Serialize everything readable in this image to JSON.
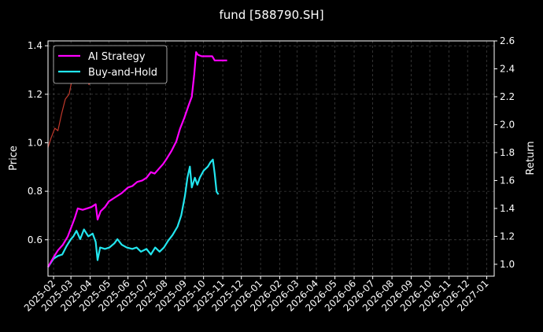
{
  "chart_data": {
    "type": "line",
    "title": "fund [588790.SH]",
    "xlabel": "",
    "ylabel_left": "Price",
    "ylabel_right": "Return",
    "x_ticks": [
      "2025-02",
      "2025-03",
      "2025-04",
      "2025-05",
      "2025-06",
      "2025-07",
      "2025-08",
      "2025-09",
      "2025-10",
      "2025-11",
      "2025-12",
      "2026-01",
      "2026-02",
      "2026-03",
      "2026-04",
      "2026-05",
      "2026-06",
      "2026-07",
      "2026-08",
      "2026-09",
      "2026-10",
      "2026-11",
      "2026-12",
      "2027-01"
    ],
    "x_range": [
      "2025-01-23",
      "2027-01-13"
    ],
    "ylim_left": [
      0.45,
      1.42
    ],
    "ylim_right": [
      0.915,
      2.6
    ],
    "y_ticks_left": [
      0.6,
      0.8,
      1.0,
      1.2,
      1.4
    ],
    "y_ticks_right": [
      1.0,
      1.2,
      1.4,
      1.6,
      1.8,
      2.0,
      2.2,
      2.4,
      2.6
    ],
    "grid": true,
    "legend_position": "top-left",
    "series": [
      {
        "name": "AI Strategy",
        "axis": "right",
        "color": "#ff00ff",
        "points": [
          [
            "2025-01-23",
            0.98
          ],
          [
            "2025-02-01",
            1.05
          ],
          [
            "2025-02-08",
            1.1
          ],
          [
            "2025-02-16",
            1.14
          ],
          [
            "2025-02-24",
            1.2
          ],
          [
            "2025-03-02",
            1.27
          ],
          [
            "2025-03-07",
            1.33
          ],
          [
            "2025-03-12",
            1.4
          ],
          [
            "2025-03-20",
            1.39
          ],
          [
            "2025-03-27",
            1.4
          ],
          [
            "2025-04-03",
            1.41
          ],
          [
            "2025-04-10",
            1.43
          ],
          [
            "2025-04-13",
            1.32
          ],
          [
            "2025-04-18",
            1.38
          ],
          [
            "2025-04-25",
            1.41
          ],
          [
            "2025-05-01",
            1.45
          ],
          [
            "2025-05-08",
            1.47
          ],
          [
            "2025-05-15",
            1.49
          ],
          [
            "2025-05-22",
            1.51
          ],
          [
            "2025-06-01",
            1.55
          ],
          [
            "2025-06-08",
            1.56
          ],
          [
            "2025-06-16",
            1.59
          ],
          [
            "2025-06-24",
            1.6
          ],
          [
            "2025-07-01",
            1.62
          ],
          [
            "2025-07-08",
            1.66
          ],
          [
            "2025-07-14",
            1.65
          ],
          [
            "2025-07-20",
            1.68
          ],
          [
            "2025-07-28",
            1.72
          ],
          [
            "2025-08-03",
            1.76
          ],
          [
            "2025-08-10",
            1.81
          ],
          [
            "2025-08-18",
            1.88
          ],
          [
            "2025-08-24",
            1.97
          ],
          [
            "2025-08-31",
            2.05
          ],
          [
            "2025-09-07",
            2.14
          ],
          [
            "2025-09-12",
            2.2
          ],
          [
            "2025-09-16",
            2.36
          ],
          [
            "2025-09-19",
            2.52
          ],
          [
            "2025-09-22",
            2.5
          ],
          [
            "2025-09-28",
            2.49
          ],
          [
            "2025-10-08",
            2.49
          ],
          [
            "2025-10-15",
            2.49
          ],
          [
            "2025-10-19",
            2.46
          ],
          [
            "2025-10-30",
            2.46
          ],
          [
            "2025-11-08",
            2.46
          ]
        ]
      },
      {
        "name": "Buy-and-Hold",
        "axis": "right",
        "color": "#22e6ef",
        "points": [
          [
            "2025-01-23",
            0.98
          ],
          [
            "2025-02-01",
            1.04
          ],
          [
            "2025-02-08",
            1.06
          ],
          [
            "2025-02-15",
            1.07
          ],
          [
            "2025-02-22",
            1.13
          ],
          [
            "2025-03-01",
            1.18
          ],
          [
            "2025-03-05",
            1.2
          ],
          [
            "2025-03-10",
            1.24
          ],
          [
            "2025-03-16",
            1.18
          ],
          [
            "2025-03-22",
            1.25
          ],
          [
            "2025-03-29",
            1.2
          ],
          [
            "2025-04-05",
            1.22
          ],
          [
            "2025-04-10",
            1.16
          ],
          [
            "2025-04-13",
            1.03
          ],
          [
            "2025-04-17",
            1.12
          ],
          [
            "2025-04-25",
            1.11
          ],
          [
            "2025-05-02",
            1.12
          ],
          [
            "2025-05-10",
            1.15
          ],
          [
            "2025-05-15",
            1.18
          ],
          [
            "2025-05-22",
            1.14
          ],
          [
            "2025-05-30",
            1.12
          ],
          [
            "2025-06-08",
            1.11
          ],
          [
            "2025-06-15",
            1.12
          ],
          [
            "2025-06-22",
            1.09
          ],
          [
            "2025-07-01",
            1.11
          ],
          [
            "2025-07-08",
            1.07
          ],
          [
            "2025-07-15",
            1.12
          ],
          [
            "2025-07-22",
            1.09
          ],
          [
            "2025-07-29",
            1.12
          ],
          [
            "2025-08-05",
            1.17
          ],
          [
            "2025-08-12",
            1.21
          ],
          [
            "2025-08-20",
            1.27
          ],
          [
            "2025-08-26",
            1.35
          ],
          [
            "2025-09-01",
            1.49
          ],
          [
            "2025-09-05",
            1.62
          ],
          [
            "2025-09-09",
            1.7
          ],
          [
            "2025-09-12",
            1.55
          ],
          [
            "2025-09-17",
            1.62
          ],
          [
            "2025-09-21",
            1.57
          ],
          [
            "2025-09-25",
            1.62
          ],
          [
            "2025-10-01",
            1.67
          ],
          [
            "2025-10-08",
            1.7
          ],
          [
            "2025-10-12",
            1.73
          ],
          [
            "2025-10-16",
            1.75
          ],
          [
            "2025-10-19",
            1.65
          ],
          [
            "2025-10-22",
            1.52
          ],
          [
            "2025-10-25",
            1.5
          ]
        ]
      },
      {
        "name": "Price",
        "axis": "left",
        "color": "#c0392b",
        "points": [
          [
            "2025-01-23",
            0.98
          ],
          [
            "2025-01-28",
            1.02
          ],
          [
            "2025-02-03",
            1.06
          ],
          [
            "2025-02-08",
            1.05
          ],
          [
            "2025-02-14",
            1.12
          ],
          [
            "2025-02-20",
            1.18
          ],
          [
            "2025-02-26",
            1.2
          ],
          [
            "2025-03-02",
            1.25
          ],
          [
            "2025-03-07",
            1.28
          ],
          [
            "2025-03-12",
            1.33
          ],
          [
            "2025-03-16",
            1.36
          ],
          [
            "2025-03-20",
            1.27
          ],
          [
            "2025-03-25",
            1.3
          ],
          [
            "2025-03-30",
            1.24
          ],
          [
            "2025-04-03",
            1.26
          ],
          [
            "2025-04-09",
            1.29
          ]
        ]
      }
    ]
  }
}
